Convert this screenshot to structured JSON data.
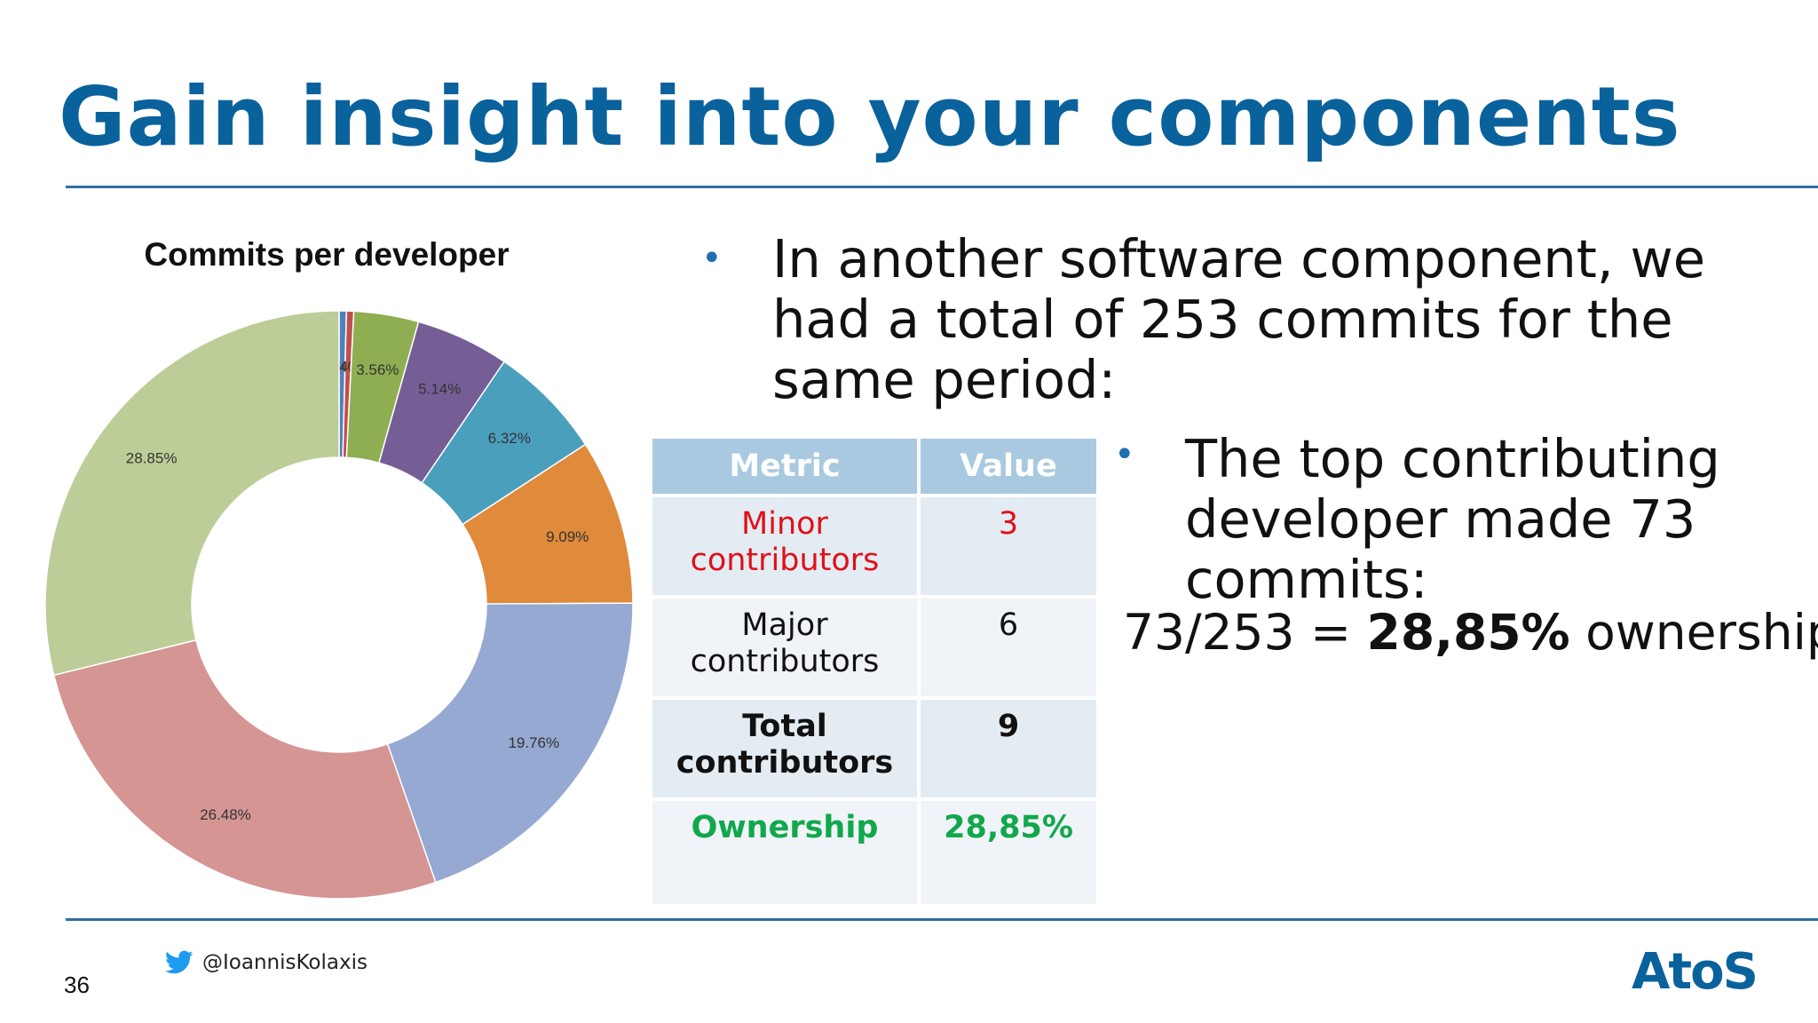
{
  "slide": {
    "title": "Gain insight into your components",
    "page_number": "36",
    "twitter_handle": "@IoannisKolaxis",
    "logo_text": "AtoS"
  },
  "bullets": {
    "first": "In another software component, we had a total of 253 commits for the same period:",
    "second": "The top contributing developer made 73 commits:",
    "ownership_prefix": "73/253 = ",
    "ownership_value": "28,85%",
    "ownership_suffix": " ownership"
  },
  "table": {
    "headers": [
      "Metric",
      "Value"
    ],
    "rows": [
      {
        "metric": "Minor contributors",
        "value": "3"
      },
      {
        "metric": "Major contributors",
        "value": "6"
      },
      {
        "metric": "Total contributors",
        "value": "9"
      },
      {
        "metric": "Ownership",
        "value": "28,85%"
      }
    ]
  },
  "colors": {
    "title": "#0a629c",
    "minor": "#e0101a",
    "ownership": "#11a84b",
    "table_header": "#a9c9e0"
  },
  "chart_data": {
    "type": "pie",
    "title": "Commits per developer",
    "donut": true,
    "slices": [
      {
        "value": 0.4,
        "label": "0.40%",
        "color": "#4f81bd"
      },
      {
        "value": 0.4,
        "label": "0.40%",
        "color": "#c0504d"
      },
      {
        "value": 3.56,
        "label": "3.56%",
        "color": "#8fae52"
      },
      {
        "value": 5.14,
        "label": "5.14%",
        "color": "#755e95"
      },
      {
        "value": 6.32,
        "label": "6.32%",
        "color": "#4a9fbd"
      },
      {
        "value": 9.09,
        "label": "9.09%",
        "color": "#e08a3c"
      },
      {
        "value": 19.76,
        "label": "19.76%",
        "color": "#95a9d3"
      },
      {
        "value": 26.48,
        "label": "26.48%",
        "color": "#d49593"
      },
      {
        "value": 28.85,
        "label": "28.85%",
        "color": "#bccd98"
      }
    ]
  }
}
